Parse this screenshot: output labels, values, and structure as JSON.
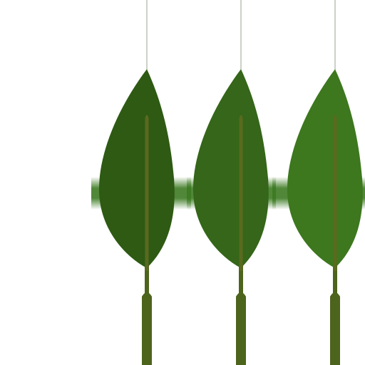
{
  "scene": {
    "background": "#ffffff",
    "band_color": "#3c7a22",
    "string_color": "#a9b2a2",
    "stem_color": "#4d641c",
    "midrib_color": "#5a6a1f",
    "leaves": [
      {
        "name": "leaf-left",
        "fill": "#2e5a13"
      },
      {
        "name": "leaf-middle",
        "fill": "#356619"
      },
      {
        "name": "leaf-right",
        "fill": "#3d771e"
      }
    ]
  }
}
